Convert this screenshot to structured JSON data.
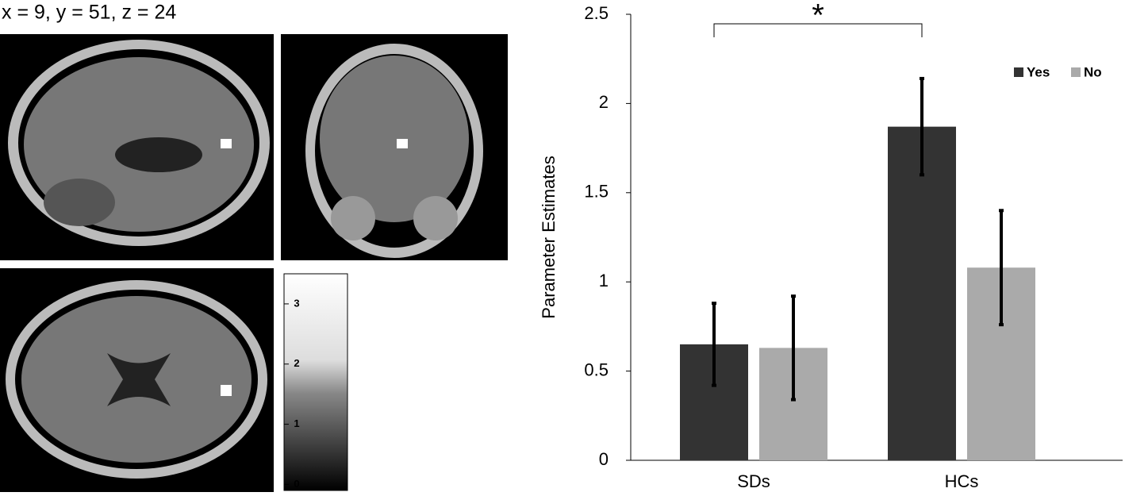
{
  "brain_panel": {
    "coordinates": "x = 9, y = 51, z = 24",
    "colorbar": {
      "ylim": [
        -0.1,
        3.5
      ],
      "yticks": [
        0,
        1,
        2,
        3
      ]
    }
  },
  "chart_data": {
    "type": "bar",
    "ylabel": "Parameter Estimates",
    "categories": [
      "SDs",
      "HCs"
    ],
    "series": [
      {
        "name": "Yes",
        "color": "#333333",
        "values": [
          0.65,
          1.87
        ],
        "errors": [
          0.23,
          0.27
        ]
      },
      {
        "name": "No",
        "color": "#aaaaaa",
        "values": [
          0.63,
          1.08
        ],
        "errors": [
          0.29,
          0.32
        ]
      }
    ],
    "ylim": [
      0,
      2.5
    ],
    "yticks": [
      0,
      0.5,
      1,
      1.5,
      2,
      2.5
    ],
    "annotation": "*",
    "legend": "upper right"
  }
}
